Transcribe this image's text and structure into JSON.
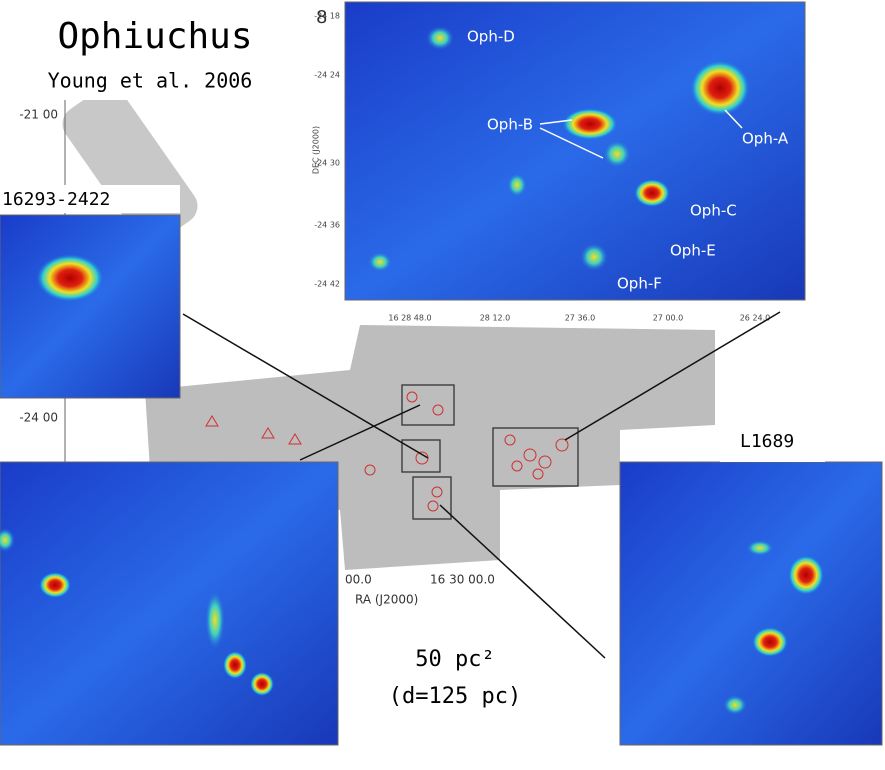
{
  "header": {
    "title": "Ophiuchus",
    "subtitle": "Young et al. 2006",
    "fragment": "8"
  },
  "top_panel": {
    "labels": [
      "Oph-D",
      "Oph-B",
      "Oph-A",
      "Oph-C",
      "Oph-E",
      "Oph-F"
    ],
    "x_ticks": [
      "16 28 48.0",
      "28 12.0",
      "27 36.0",
      "27 00.0",
      "26 24.0"
    ],
    "y_ticks": [
      "-24 18",
      "-24 24",
      "-24 30",
      "-24 36",
      "-24 42"
    ],
    "y_axis_label": "DEC (J2000)"
  },
  "left_panel": {
    "label": "16293-2422"
  },
  "right_panel": {
    "label": "L1689"
  },
  "mosaic": {
    "y_ticks": [
      "-21 00",
      "-24 00"
    ],
    "x_ticks": [
      "00.0",
      "16 30 00.0"
    ],
    "x_axis_label": "RA (J2000)"
  },
  "area_box": {
    "area": "50 pc²",
    "distance": "(d=125 pc)"
  }
}
